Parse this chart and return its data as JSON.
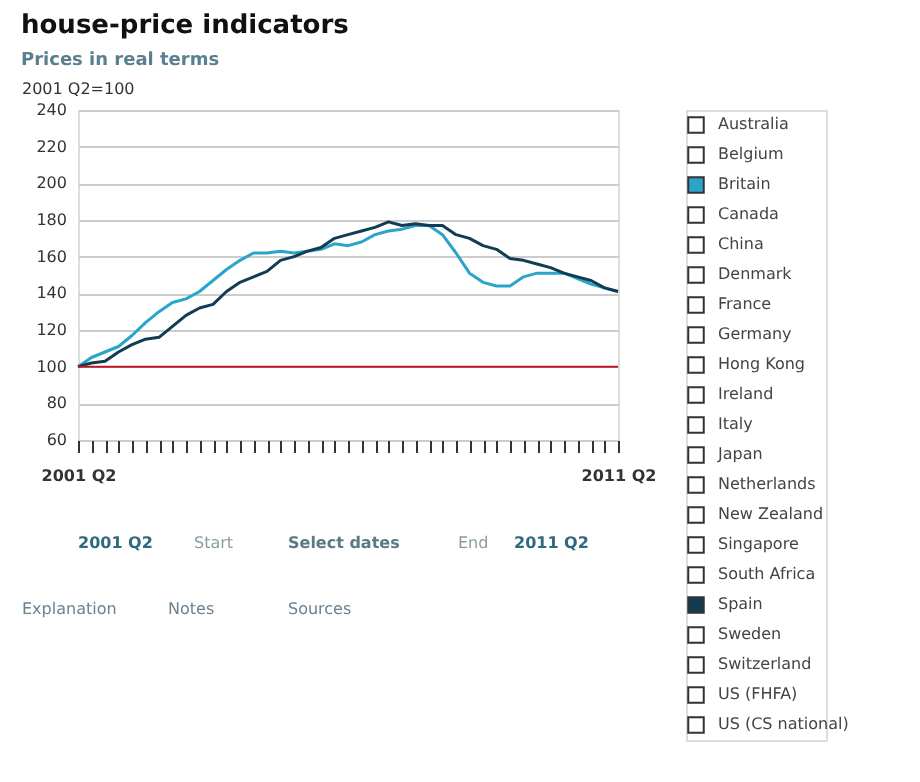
{
  "chart_data": {
    "type": "line",
    "title": "house-price indicators",
    "subtitle": "Prices in real terms",
    "annotations": [
      "2001 Q2=100",
      "2001 Q2",
      "Start",
      "Select dates",
      "End",
      "2011 Q2",
      "Explanation",
      "Notes",
      "Sources"
    ],
    "categories": [
      "2001 Q2",
      null,
      null,
      null,
      null,
      null,
      null,
      null,
      null,
      null,
      null,
      null,
      null,
      null,
      null,
      null,
      null,
      null,
      null,
      null,
      null,
      null,
      null,
      null,
      null,
      null,
      null,
      null,
      null,
      null,
      null,
      null,
      null,
      null,
      null,
      null,
      null,
      null,
      null,
      null,
      "2011 Q2"
    ],
    "series": [
      {
        "name": "Australia",
        "color": "#ffffff",
        "values": [
          null,
          null,
          null,
          null,
          null,
          null,
          null,
          null,
          null,
          null,
          null,
          null,
          null,
          null,
          null,
          null,
          null,
          null,
          null,
          null,
          null,
          null,
          null,
          null,
          null,
          null,
          null,
          null,
          null,
          null,
          null,
          null,
          null,
          null,
          null,
          null,
          null,
          null,
          null,
          null,
          null
        ]
      },
      {
        "name": "Belgium",
        "color": "#ffffff",
        "values": [
          null,
          null,
          null,
          null,
          null,
          null,
          null,
          null,
          null,
          null,
          null,
          null,
          null,
          null,
          null,
          null,
          null,
          null,
          null,
          null,
          null,
          null,
          null,
          null,
          null,
          null,
          null,
          null,
          null,
          null,
          null,
          null,
          null,
          null,
          null,
          null,
          null,
          null,
          null,
          null,
          null
        ]
      },
      {
        "name": "Britain",
        "color": "#2aa4c8",
        "values": [
          100,
          105,
          108,
          111,
          117,
          124,
          130,
          135,
          137,
          141,
          147,
          153,
          158,
          162,
          162,
          163,
          162,
          163,
          164,
          167,
          166,
          168,
          172,
          174,
          175,
          177,
          177,
          172,
          162,
          151,
          146,
          144,
          144,
          149,
          151,
          151,
          151,
          148,
          145,
          143,
          141
        ]
      },
      {
        "name": "Canada",
        "color": "#ffffff",
        "values": [
          null,
          null,
          null,
          null,
          null,
          null,
          null,
          null,
          null,
          null,
          null,
          null,
          null,
          null,
          null,
          null,
          null,
          null,
          null,
          null,
          null,
          null,
          null,
          null,
          null,
          null,
          null,
          null,
          null,
          null,
          null,
          null,
          null,
          null,
          null,
          null,
          null,
          null,
          null,
          null,
          null
        ]
      },
      {
        "name": "China",
        "color": "#ffffff",
        "values": [
          null,
          null,
          null,
          null,
          null,
          null,
          null,
          null,
          null,
          null,
          null,
          null,
          null,
          null,
          null,
          null,
          null,
          null,
          null,
          null,
          null,
          null,
          null,
          null,
          null,
          null,
          null,
          null,
          null,
          null,
          null,
          null,
          null,
          null,
          null,
          null,
          null,
          null,
          null,
          null,
          null
        ]
      },
      {
        "name": "Denmark",
        "color": "#ffffff",
        "values": [
          null,
          null,
          null,
          null,
          null,
          null,
          null,
          null,
          null,
          null,
          null,
          null,
          null,
          null,
          null,
          null,
          null,
          null,
          null,
          null,
          null,
          null,
          null,
          null,
          null,
          null,
          null,
          null,
          null,
          null,
          null,
          null,
          null,
          null,
          null,
          null,
          null,
          null,
          null,
          null,
          null
        ]
      },
      {
        "name": "France",
        "color": "#ffffff",
        "values": [
          null,
          null,
          null,
          null,
          null,
          null,
          null,
          null,
          null,
          null,
          null,
          null,
          null,
          null,
          null,
          null,
          null,
          null,
          null,
          null,
          null,
          null,
          null,
          null,
          null,
          null,
          null,
          null,
          null,
          null,
          null,
          null,
          null,
          null,
          null,
          null,
          null,
          null,
          null,
          null,
          null
        ]
      },
      {
        "name": "Germany",
        "color": "#ffffff",
        "values": [
          null,
          null,
          null,
          null,
          null,
          null,
          null,
          null,
          null,
          null,
          null,
          null,
          null,
          null,
          null,
          null,
          null,
          null,
          null,
          null,
          null,
          null,
          null,
          null,
          null,
          null,
          null,
          null,
          null,
          null,
          null,
          null,
          null,
          null,
          null,
          null,
          null,
          null,
          null,
          null,
          null
        ]
      },
      {
        "name": "Hong Kong",
        "color": "#ffffff",
        "values": [
          null,
          null,
          null,
          null,
          null,
          null,
          null,
          null,
          null,
          null,
          null,
          null,
          null,
          null,
          null,
          null,
          null,
          null,
          null,
          null,
          null,
          null,
          null,
          null,
          null,
          null,
          null,
          null,
          null,
          null,
          null,
          null,
          null,
          null,
          null,
          null,
          null,
          null,
          null,
          null,
          null
        ]
      },
      {
        "name": "Ireland",
        "color": "#ffffff",
        "values": [
          null,
          null,
          null,
          null,
          null,
          null,
          null,
          null,
          null,
          null,
          null,
          null,
          null,
          null,
          null,
          null,
          null,
          null,
          null,
          null,
          null,
          null,
          null,
          null,
          null,
          null,
          null,
          null,
          null,
          null,
          null,
          null,
          null,
          null,
          null,
          null,
          null,
          null,
          null,
          null,
          null
        ]
      },
      {
        "name": "Italy",
        "color": "#ffffff",
        "values": [
          null,
          null,
          null,
          null,
          null,
          null,
          null,
          null,
          null,
          null,
          null,
          null,
          null,
          null,
          null,
          null,
          null,
          null,
          null,
          null,
          null,
          null,
          null,
          null,
          null,
          null,
          null,
          null,
          null,
          null,
          null,
          null,
          null,
          null,
          null,
          null,
          null,
          null,
          null,
          null,
          null
        ]
      },
      {
        "name": "Japan",
        "color": "#ffffff",
        "values": [
          null,
          null,
          null,
          null,
          null,
          null,
          null,
          null,
          null,
          null,
          null,
          null,
          null,
          null,
          null,
          null,
          null,
          null,
          null,
          null,
          null,
          null,
          null,
          null,
          null,
          null,
          null,
          null,
          null,
          null,
          null,
          null,
          null,
          null,
          null,
          null,
          null,
          null,
          null,
          null,
          null
        ]
      },
      {
        "name": "Netherlands",
        "color": "#ffffff",
        "values": [
          null,
          null,
          null,
          null,
          null,
          null,
          null,
          null,
          null,
          null,
          null,
          null,
          null,
          null,
          null,
          null,
          null,
          null,
          null,
          null,
          null,
          null,
          null,
          null,
          null,
          null,
          null,
          null,
          null,
          null,
          null,
          null,
          null,
          null,
          null,
          null,
          null,
          null,
          null,
          null,
          null
        ]
      },
      {
        "name": "New Zealand",
        "color": "#ffffff",
        "values": [
          null,
          null,
          null,
          null,
          null,
          null,
          null,
          null,
          null,
          null,
          null,
          null,
          null,
          null,
          null,
          null,
          null,
          null,
          null,
          null,
          null,
          null,
          null,
          null,
          null,
          null,
          null,
          null,
          null,
          null,
          null,
          null,
          null,
          null,
          null,
          null,
          null,
          null,
          null,
          null,
          null
        ]
      },
      {
        "name": "Singapore",
        "color": "#ffffff",
        "values": [
          null,
          null,
          null,
          null,
          null,
          null,
          null,
          null,
          null,
          null,
          null,
          null,
          null,
          null,
          null,
          null,
          null,
          null,
          null,
          null,
          null,
          null,
          null,
          null,
          null,
          null,
          null,
          null,
          null,
          null,
          null,
          null,
          null,
          null,
          null,
          null,
          null,
          null,
          null,
          null,
          null
        ]
      },
      {
        "name": "South Africa",
        "color": "#ffffff",
        "values": [
          null,
          null,
          null,
          null,
          null,
          null,
          null,
          null,
          null,
          null,
          null,
          null,
          null,
          null,
          null,
          null,
          null,
          null,
          null,
          null,
          null,
          null,
          null,
          null,
          null,
          null,
          null,
          null,
          null,
          null,
          null,
          null,
          null,
          null,
          null,
          null,
          null,
          null,
          null,
          null,
          null
        ]
      },
      {
        "name": "Spain",
        "color": "#123c54",
        "values": [
          100,
          102,
          103,
          108,
          112,
          115,
          116,
          122,
          128,
          132,
          134,
          141,
          146,
          149,
          152,
          158,
          160,
          163,
          165,
          170,
          172,
          174,
          176,
          179,
          177,
          178,
          177,
          177,
          172,
          170,
          166,
          164,
          159,
          158,
          156,
          154,
          151,
          149,
          147,
          143,
          141
        ]
      },
      {
        "name": "Sweden",
        "color": "#ffffff",
        "values": [
          null,
          null,
          null,
          null,
          null,
          null,
          null,
          null,
          null,
          null,
          null,
          null,
          null,
          null,
          null,
          null,
          null,
          null,
          null,
          null,
          null,
          null,
          null,
          null,
          null,
          null,
          null,
          null,
          null,
          null,
          null,
          null,
          null,
          null,
          null,
          null,
          null,
          null,
          null,
          null,
          null
        ]
      },
      {
        "name": "Switzerland",
        "color": "#ffffff",
        "values": [
          null,
          null,
          null,
          null,
          null,
          null,
          null,
          null,
          null,
          null,
          null,
          null,
          null,
          null,
          null,
          null,
          null,
          null,
          null,
          null,
          null,
          null,
          null,
          null,
          null,
          null,
          null,
          null,
          null,
          null,
          null,
          null,
          null,
          null,
          null,
          null,
          null,
          null,
          null,
          null,
          null
        ]
      },
      {
        "name": "US (FHFA)",
        "color": "#ffffff",
        "values": [
          null,
          null,
          null,
          null,
          null,
          null,
          null,
          null,
          null,
          null,
          null,
          null,
          null,
          null,
          null,
          null,
          null,
          null,
          null,
          null,
          null,
          null,
          null,
          null,
          null,
          null,
          null,
          null,
          null,
          null,
          null,
          null,
          null,
          null,
          null,
          null,
          null,
          null,
          null,
          null,
          null
        ]
      },
      {
        "name": "US (CS national)",
        "color": "#ffffff",
        "values": [
          null,
          null,
          null,
          null,
          null,
          null,
          null,
          null,
          null,
          null,
          null,
          null,
          null,
          null,
          null,
          null,
          null,
          null,
          null,
          null,
          null,
          null,
          null,
          null,
          null,
          null,
          null,
          null,
          null,
          null,
          null,
          null,
          null,
          null,
          null,
          null,
          null,
          null,
          null,
          null,
          null
        ]
      }
    ],
    "ylim": [
      60,
      240
    ],
    "yticks": [
      60,
      80,
      100,
      120,
      140,
      160,
      180,
      200,
      220,
      240
    ],
    "ref_lines": [
      {
        "axis": "y",
        "value": 100,
        "color": "#c0142a"
      }
    ],
    "grid": "y",
    "legend": "right",
    "marker": "none",
    "line_style": "solid"
  }
}
